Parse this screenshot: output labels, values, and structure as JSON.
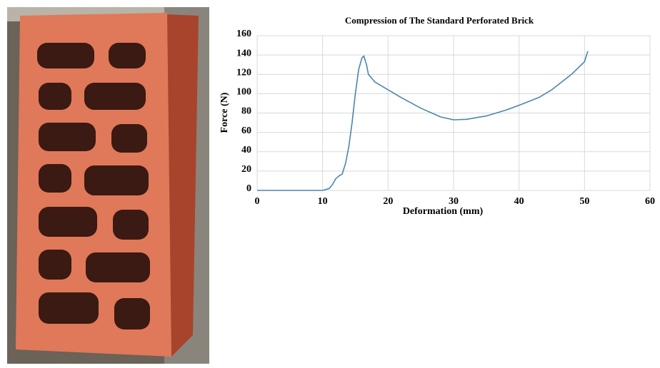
{
  "chart_data": {
    "type": "line",
    "title": "Compression of The Standard Perforated Brick",
    "x_label": "Deformation (mm)",
    "y_label": "Force (N)",
    "x": [
      0,
      5,
      10,
      11,
      11.5,
      12,
      12.5,
      13,
      13.5,
      14,
      14.5,
      15,
      15.5,
      16,
      16.3,
      16.7,
      17,
      18,
      20,
      22,
      25,
      28,
      30,
      32,
      35,
      38,
      40,
      43,
      45,
      48,
      50,
      50.5
    ],
    "values": [
      0,
      0,
      0,
      2,
      6,
      12,
      15,
      17,
      28,
      45,
      70,
      100,
      125,
      137,
      139,
      130,
      120,
      112,
      104,
      96,
      85,
      76,
      73,
      73.5,
      77,
      83,
      88,
      96,
      104,
      120,
      133,
      144
    ],
    "color": "#4a86ad",
    "xlim": [
      0,
      60
    ],
    "xticks": [
      0,
      10,
      20,
      30,
      40,
      50,
      60
    ],
    "ylim": [
      0,
      160
    ],
    "yticks": [
      0,
      20,
      40,
      60,
      80,
      100,
      120,
      140,
      160
    ],
    "grid": true
  }
}
